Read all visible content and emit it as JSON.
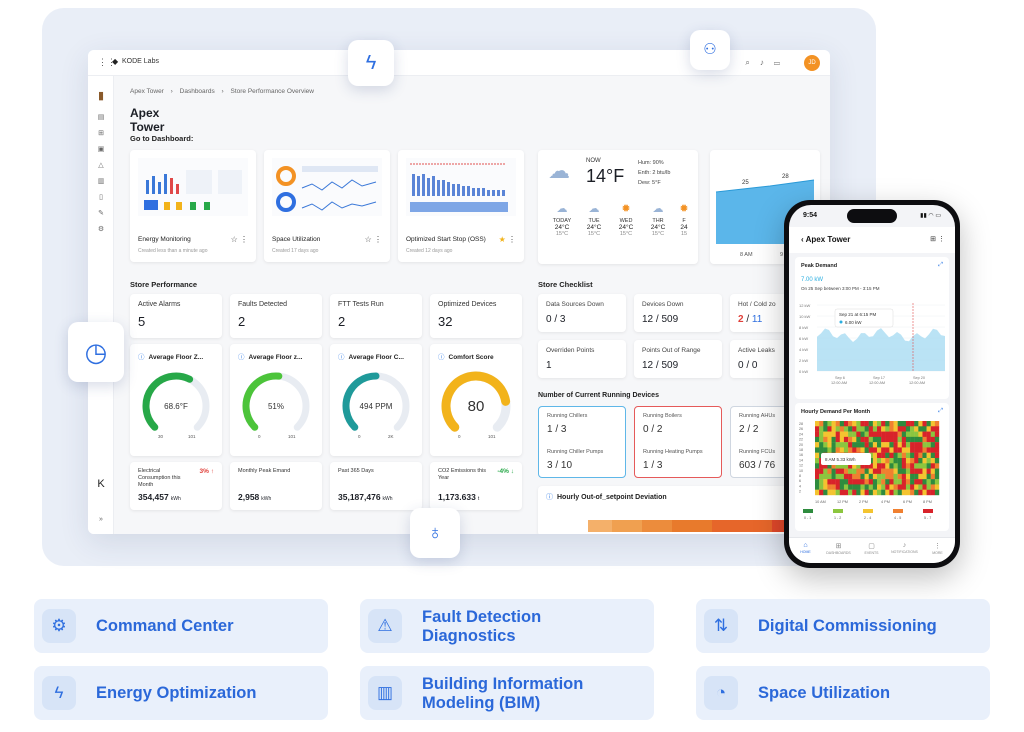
{
  "topbar": {
    "brand": "KODE Labs",
    "avatar": "JD"
  },
  "breadcrumb": [
    "Apex Tower",
    "Dashboards",
    "Store Performance Overview"
  ],
  "page_title": "Apex Tower",
  "goto_heading": "Go to Dashboard:",
  "dashboards": [
    {
      "name": "Energy Monitoring",
      "meta": "Created less than a minute ago",
      "starred": false
    },
    {
      "name": "Space Utilization",
      "meta": "Created 17 days ago",
      "starred": false
    },
    {
      "name": "Optimized Start Stop (OSS)",
      "meta": "Created 12 days ago",
      "starred": true
    }
  ],
  "weather": {
    "now_label": "NOW",
    "temp": "14°F",
    "hum": "Hum: 90%",
    "enth": "Enth: 2 btu/lb",
    "dew": "Dew: 5°F",
    "forecast": [
      {
        "day": "TODAY",
        "high": "24°C",
        "low": "15°C",
        "icon": "rain-icon"
      },
      {
        "day": "TUE",
        "high": "24°C",
        "low": "15°C",
        "icon": "rain-icon"
      },
      {
        "day": "WED",
        "high": "24°C",
        "low": "15°C",
        "icon": "sun-icon"
      },
      {
        "day": "THR",
        "high": "24°C",
        "low": "15°C",
        "icon": "cloud-icon"
      },
      {
        "day": "F",
        "high": "24",
        "low": "15",
        "icon": "sun-icon"
      }
    ]
  },
  "area_chart": {
    "values": [
      25,
      28
    ],
    "xlabels": [
      "8 AM",
      "9 AM"
    ]
  },
  "store_performance": {
    "heading": "Store Performance",
    "kpis": [
      {
        "label": "Active Alarms",
        "value": "5"
      },
      {
        "label": "Faults Detected",
        "value": "2"
      },
      {
        "label": "FTT Tests Run",
        "value": "2"
      },
      {
        "label": "Optimized Devices",
        "value": "32"
      }
    ],
    "gauges": [
      {
        "title": "Average Floor Z...",
        "value": "68.6°F",
        "min": "30",
        "max": "101",
        "fraction": 0.6,
        "color": "#27a848"
      },
      {
        "title": "Average Floor z...",
        "value": "51%",
        "min": "0",
        "max": "101",
        "fraction": 0.52,
        "color": "#4cc43a"
      },
      {
        "title": "Average Floor C...",
        "value": "494 PPM",
        "min": "0",
        "max": "2K",
        "fraction": 0.5,
        "color": "#1f9a9a"
      },
      {
        "title": "Comfort Score",
        "value": "80",
        "min": "0",
        "max": "101",
        "fraction": 0.8,
        "color": "#f2b31b"
      }
    ],
    "minis": [
      {
        "label": "Electrical Consumption this Month",
        "value": "354,457",
        "unit": "kWh",
        "pct": "3% ↑",
        "pct_color": "#e0403a"
      },
      {
        "label": "Monthly Peak Emand",
        "value": "2,958",
        "unit": "kWh",
        "pct": "",
        "pct_color": ""
      },
      {
        "label": "Past 365 Days",
        "value": "35,187,476",
        "unit": "kWh",
        "pct": "",
        "pct_color": ""
      },
      {
        "label": "CO2 Emissions this Year",
        "value": "1,173.633",
        "unit": "t",
        "pct": "-4% ↓",
        "pct_color": "#27a848"
      }
    ]
  },
  "store_checklist": {
    "heading": "Store Checklist",
    "items": [
      {
        "label": "Data Sources Down",
        "value": "0 / 3"
      },
      {
        "label": "Devices Down",
        "value": "12 / 509"
      },
      {
        "label": "Hot / Cold zo",
        "value_red": "2",
        "value_blue": "11"
      },
      {
        "label": "Overriden Points",
        "value": "1"
      },
      {
        "label": "Points Out of Range",
        "value": "12 / 509"
      },
      {
        "label": "Active Leaks",
        "value": "0 / 0"
      }
    ]
  },
  "running_devices": {
    "heading": "Number of Current Running Devices",
    "groups": [
      {
        "l1": "Running Chillers",
        "v1": "1 / 3",
        "l2": "Running Chiller Pumps",
        "v2": "3 / 10",
        "border": "#5fb7e8"
      },
      {
        "l1": "Running Boilers",
        "v1": "0 / 2",
        "l2": "Running Heating Pumps",
        "v2": "1 / 3",
        "border": "#e55a5a"
      },
      {
        "l1": "Running AHUs",
        "v1": "2 / 2",
        "l2": "Running FCUs",
        "v2": "603 / 76",
        "border": "#cfd6e0"
      }
    ]
  },
  "deviation": {
    "title": "Hourly Out-of_setpoint Deviation"
  },
  "phone": {
    "time": "9:54",
    "title": "Apex Tower",
    "peak": {
      "title": "Peak Demand",
      "value": "7.00 kW",
      "sub": "On 25 Sep between 3:00 PM - 3:15 PM",
      "ylabels": [
        "12 kW",
        "10 kW",
        "8 kW",
        "6 kW",
        "4 kW",
        "2 kW",
        "0 kW"
      ],
      "xlabels": [
        "Sep 6\n12:00 AM",
        "Sep 17\n12:00 AM",
        "Sep 20\n12:00 AM"
      ],
      "tooltip_date": "Sep 21 at 6:15 PM",
      "tooltip_val": "6.00 kW"
    },
    "hourly": {
      "title": "Hourly Demand Per Month",
      "tooltip": "8 AM  5.33 kWh",
      "ylabels": [
        "28",
        "26",
        "24",
        "22",
        "20",
        "18",
        "16",
        "14",
        "12",
        "10",
        "8",
        "6",
        "4",
        "2"
      ],
      "xlabels": [
        "10 AM",
        "12 PM",
        "2 PM",
        "4 PM",
        "6 PM",
        "8 PM"
      ],
      "legend": [
        "0 - 1",
        "1 - 2",
        "2 - 4",
        "4 - 5",
        "5 - 7"
      ],
      "legend_colors": [
        "#2e8b3e",
        "#8cc63f",
        "#f4c430",
        "#f08030",
        "#d8232a"
      ]
    },
    "nav": [
      "HOME",
      "DASHBOARDS",
      "EVENTS",
      "NOTIFICATIONS",
      "MORE"
    ]
  },
  "features": [
    {
      "label": "Command Center",
      "icon": "target-gear-icon"
    },
    {
      "label": "Fault Detection\nDiagnostics",
      "icon": "diagnostics-icon"
    },
    {
      "label": "Digital Commissioning",
      "icon": "commissioning-icon"
    },
    {
      "label": "Energy Optimization",
      "icon": "lightning-icon"
    },
    {
      "label": "Building Information\nModeling (BIM)",
      "icon": "building-icon"
    },
    {
      "label": "Space Utilization",
      "icon": "space-icon"
    }
  ]
}
